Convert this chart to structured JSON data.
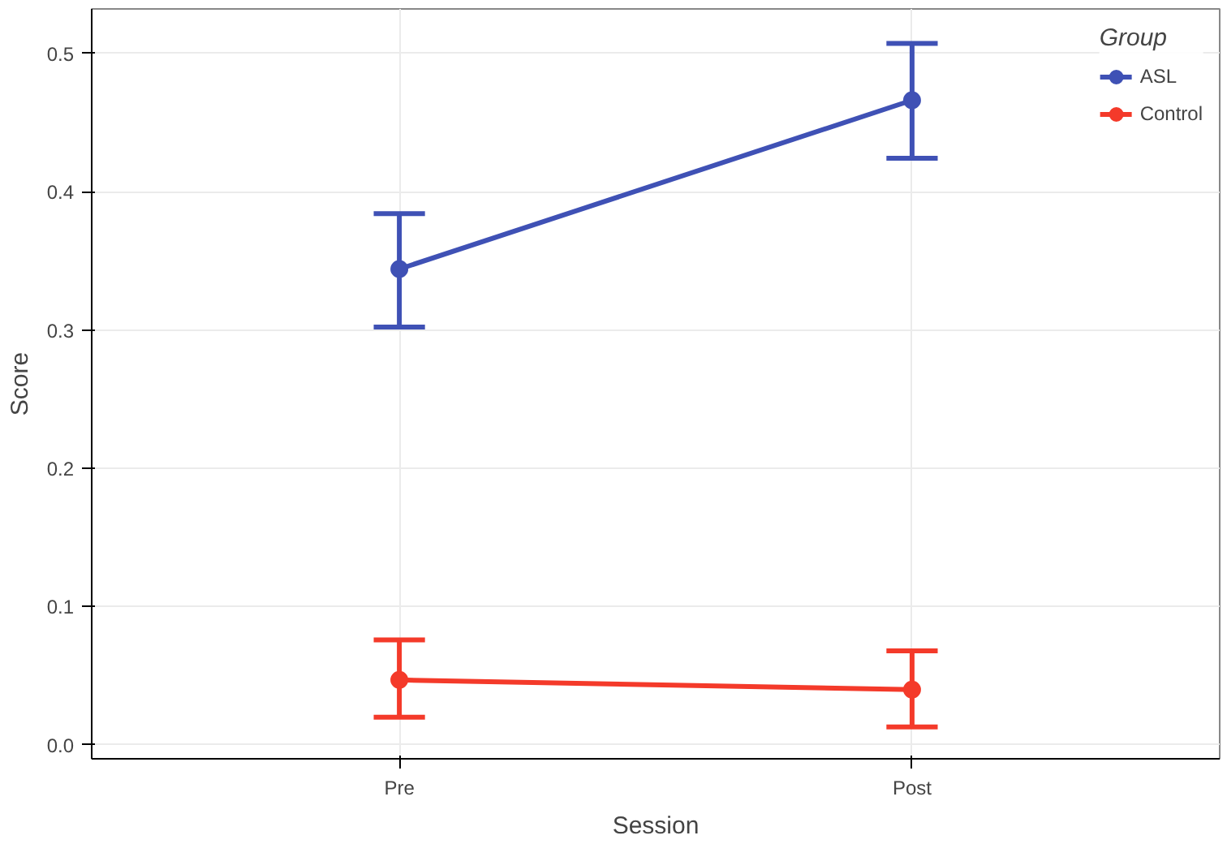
{
  "chart_data": {
    "type": "line",
    "xlabel": "Session",
    "ylabel": "Score",
    "legend_title": "Group",
    "categories": [
      "Pre",
      "Post"
    ],
    "series": [
      {
        "name": "ASL",
        "color": "#3f51b5",
        "values": [
          0.344,
          0.466
        ],
        "errors": [
          [
            0.302,
            0.384
          ],
          [
            0.424,
            0.507
          ]
        ]
      },
      {
        "name": "Control",
        "color": "#f43a2a",
        "values": [
          0.047,
          0.04
        ],
        "errors": [
          [
            0.02,
            0.076
          ],
          [
            0.013,
            0.068
          ]
        ]
      }
    ],
    "ylim": [
      -0.01,
      0.532
    ],
    "yticks": [
      {
        "value": 0,
        "label": "0.0"
      },
      0.1,
      0.2,
      0.3,
      0.4,
      0.5
    ],
    "grid": true,
    "legend": "top right",
    "marker": "circle",
    "line_style": "solid"
  }
}
